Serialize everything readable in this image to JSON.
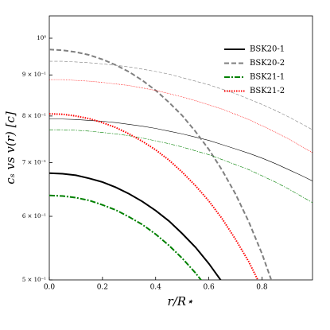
{
  "chart_data": {
    "type": "line",
    "xlabel": "r/R⋆",
    "ylabel": "cₛ vs v(r) [c]",
    "x": [
      0,
      0.05,
      0.1,
      0.15,
      0.2,
      0.25,
      0.3,
      0.35,
      0.4,
      0.45,
      0.5,
      0.55,
      0.6,
      0.65,
      0.7,
      0.75,
      0.8,
      0.85,
      0.9,
      0.95,
      0.99
    ],
    "xlim": [
      0,
      0.99
    ],
    "xticks": [
      {
        "value": 0,
        "label": "0.0"
      },
      0.2,
      0.4,
      0.6,
      0.8
    ],
    "ylim": [
      0.5,
      1.066
    ],
    "log_y": true,
    "yticks": [
      {
        "value": 1,
        "label": "10⁰"
      },
      {
        "value": 0.9,
        "label": "9 × 10⁻¹"
      },
      {
        "value": 0.8,
        "label": "8 × 10⁻¹"
      },
      {
        "value": 0.7,
        "label": "7 × 10⁻¹"
      },
      {
        "value": 0.6,
        "label": "6 × 10⁻¹"
      },
      {
        "value": 0.5,
        "label": "5 × 10⁻¹"
      }
    ],
    "legend": "upper right",
    "series": [
      {
        "name": "BSK20-1",
        "color": "#000000",
        "dash": "solid",
        "values": [
          0.679,
          0.678,
          0.675,
          0.669,
          0.662,
          0.652,
          0.64,
          0.626,
          0.61,
          0.592,
          0.571,
          0.549,
          0.524,
          0.497,
          0.468,
          null,
          null,
          null,
          null,
          null,
          null
        ],
        "cs_values": [
          0.793,
          0.793,
          0.792,
          0.79,
          0.788,
          0.785,
          0.781,
          0.777,
          0.772,
          0.766,
          0.76,
          0.753,
          0.746,
          0.737,
          0.728,
          0.719,
          0.709,
          0.698,
          0.686,
          0.674,
          0.664
        ]
      },
      {
        "name": "BSK20-2",
        "color": "#808080",
        "dash": "dashed",
        "values": [
          0.968,
          0.966,
          0.961,
          0.953,
          0.941,
          0.926,
          0.908,
          0.886,
          0.861,
          0.832,
          0.801,
          0.765,
          0.727,
          0.685,
          0.64,
          0.591,
          0.539,
          0.484,
          null,
          null,
          null
        ],
        "cs_values": [
          0.936,
          0.936,
          0.934,
          0.932,
          0.929,
          0.925,
          0.921,
          0.915,
          0.909,
          0.902,
          0.893,
          0.884,
          0.875,
          0.864,
          0.853,
          0.84,
          0.827,
          0.813,
          0.798,
          0.782,
          0.769
        ]
      },
      {
        "name": "BSK21-1",
        "color": "#008000",
        "dash": "dashdot",
        "values": [
          0.637,
          0.636,
          0.633,
          0.628,
          0.62,
          0.611,
          0.599,
          0.586,
          0.57,
          0.552,
          0.532,
          0.51,
          0.486,
          null,
          null,
          null,
          null,
          null,
          null,
          null,
          null
        ],
        "cs_values": [
          0.769,
          0.769,
          0.768,
          0.766,
          0.763,
          0.76,
          0.756,
          0.751,
          0.745,
          0.739,
          0.732,
          0.724,
          0.716,
          0.706,
          0.696,
          0.686,
          0.674,
          0.662,
          0.649,
          0.635,
          0.624
        ]
      },
      {
        "name": "BSK21-2",
        "color": "#ff0000",
        "dash": "dotted",
        "values": [
          0.805,
          0.804,
          0.8,
          0.794,
          0.785,
          0.774,
          0.76,
          0.744,
          0.726,
          0.705,
          0.681,
          0.655,
          0.627,
          0.596,
          0.562,
          0.527,
          0.488,
          null,
          null,
          null,
          null
        ],
        "cs_values": [
          0.888,
          0.888,
          0.886,
          0.884,
          0.881,
          0.877,
          0.873,
          0.867,
          0.861,
          0.853,
          0.845,
          0.836,
          0.826,
          0.816,
          0.804,
          0.792,
          0.778,
          0.764,
          0.749,
          0.733,
          0.72
        ]
      }
    ]
  }
}
